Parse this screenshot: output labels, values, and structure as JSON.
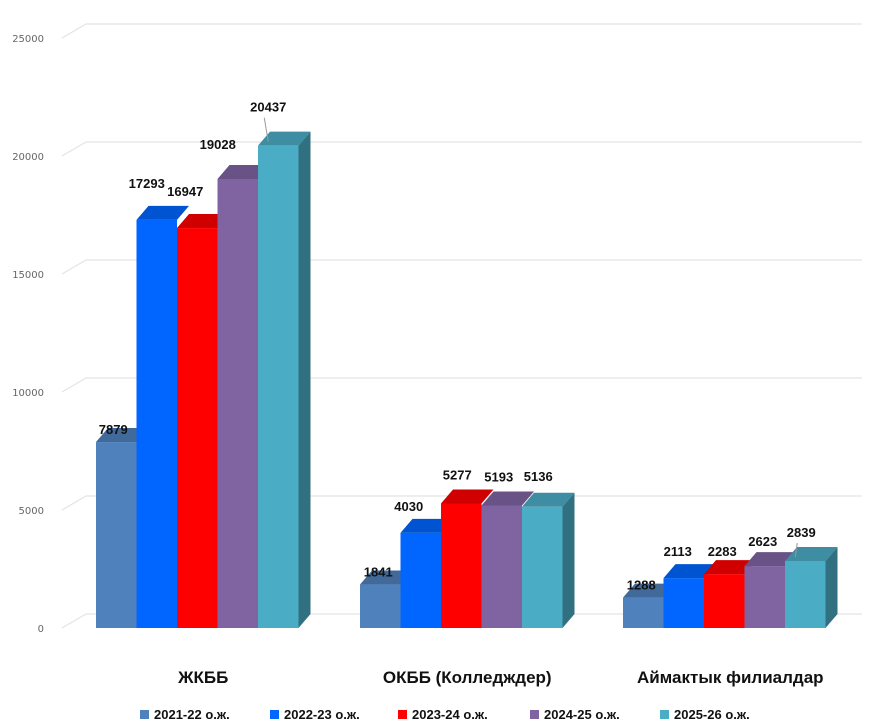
{
  "chart_data": {
    "type": "bar",
    "categories": [
      "ЖКББ",
      "ОКББ (Колледждер)",
      "Аймактык филиалдар"
    ],
    "series": [
      {
        "name": "2021-22 о.ж.",
        "color": "#4f81bd",
        "values": [
          7879,
          1841,
          1288
        ]
      },
      {
        "name": "2022-23 о.ж.",
        "color": "#0066ff",
        "values": [
          17293,
          4030,
          2113
        ]
      },
      {
        "name": "2023-24 о.ж.",
        "color": "#ff0000",
        "values": [
          16947,
          5277,
          2283
        ]
      },
      {
        "name": "2024-25 о.ж.",
        "color": "#8064a2",
        "values": [
          19028,
          5193,
          2623
        ]
      },
      {
        "name": "2025-26 о.ж.",
        "color": "#4bacc6",
        "values": [
          20437,
          5136,
          2839
        ]
      }
    ],
    "ylim": [
      0,
      25000
    ],
    "yticks": [
      0,
      5000,
      10000,
      15000,
      20000,
      25000
    ],
    "grid": true,
    "legend": "bottom",
    "style": "3d-clustered-column"
  }
}
